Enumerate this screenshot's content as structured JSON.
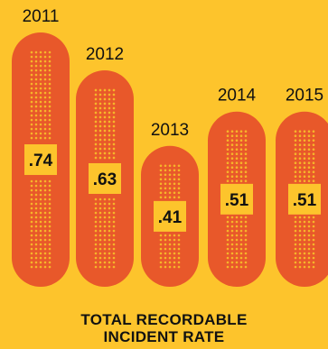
{
  "colors": {
    "background": "#fdc42c",
    "bandage": "#e8582a",
    "pad_dots": "#f6b52a",
    "label_box": "#fdc42c",
    "text": "#111111"
  },
  "chart_data": {
    "type": "bar",
    "categories": [
      "2011",
      "2012",
      "2013",
      "2014",
      "2015"
    ],
    "values": [
      0.74,
      0.63,
      0.41,
      0.51,
      0.51
    ],
    "value_labels": [
      ".74",
      ".63",
      ".41",
      ".51",
      ".51"
    ],
    "title_lines": [
      "TOTAL RECORDABLE",
      "INCIDENT RATE"
    ],
    "ylim": [
      0,
      0.8
    ],
    "grid": false,
    "mark_style": "bandage"
  }
}
